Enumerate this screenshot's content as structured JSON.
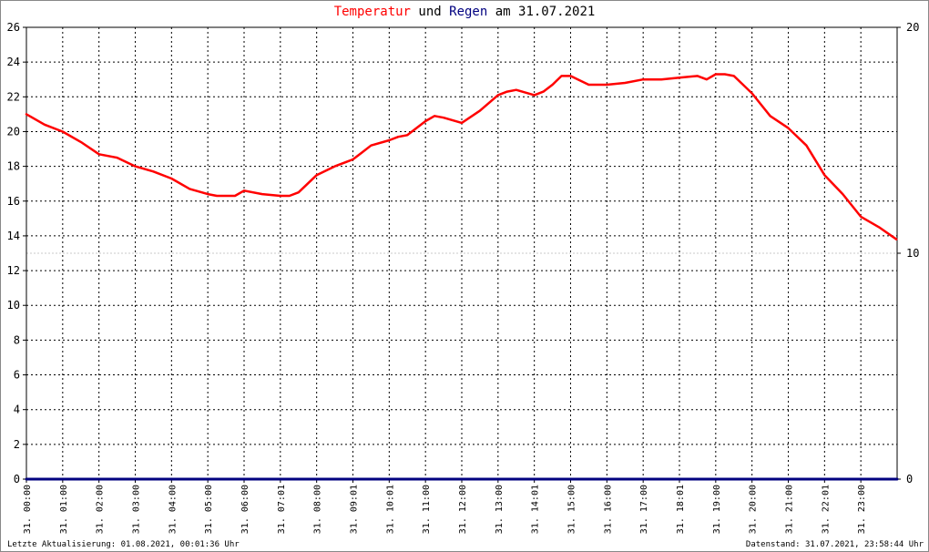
{
  "title": {
    "part1": "Temperatur",
    "part2": " und ",
    "part3": "Regen",
    "part4": " am 31.07.2021",
    "color1": "#ff0000",
    "color3": "#000080"
  },
  "footer": {
    "left": "Letzte Aktualisierung: 01.08.2021, 00:01:36 Uhr",
    "right": "Datenstand: 31.07.2021, 23:58:44 Uhr"
  },
  "chart_data": {
    "type": "line",
    "title": "Temperatur und Regen am 31.07.2021",
    "x_tick_labels": [
      "31. 00:00",
      "31. 01:00",
      "31. 02:00",
      "31. 03:00",
      "31. 04:00",
      "31. 05:00",
      "31. 06:00",
      "31. 07:01",
      "31. 08:00",
      "31. 09:01",
      "31. 10:01",
      "31. 11:00",
      "31. 12:00",
      "31. 13:00",
      "31. 14:01",
      "31. 15:00",
      "31. 16:00",
      "31. 17:00",
      "31. 18:01",
      "31. 19:00",
      "31. 20:00",
      "31. 21:00",
      "31. 22:01",
      "31. 23:00"
    ],
    "y_left_ticks": [
      0,
      2,
      4,
      6,
      8,
      10,
      12,
      14,
      16,
      18,
      20,
      22,
      24,
      26
    ],
    "y_left_range": [
      0,
      26
    ],
    "y_right_ticks": [
      0,
      10,
      20
    ],
    "y_right_range": [
      0,
      20
    ],
    "grid": true,
    "series": [
      {
        "name": "Temperatur",
        "color": "#ff0000",
        "axis": "left",
        "x_hours": [
          0,
          0.5,
          1,
          1.5,
          2,
          2.5,
          3,
          3.5,
          4,
          4.5,
          5,
          5.25,
          5.75,
          6,
          6.5,
          7,
          7.25,
          7.5,
          8,
          8.5,
          9,
          9.25,
          9.5,
          10,
          10.25,
          10.5,
          11,
          11.25,
          11.5,
          12,
          12.5,
          13,
          13.25,
          13.5,
          14,
          14.25,
          14.5,
          14.75,
          15,
          15.5,
          16,
          16.5,
          17,
          17.25,
          17.5,
          18,
          18.5,
          18.75,
          19,
          19.25,
          19.5,
          20,
          20.5,
          21,
          21.5,
          22,
          22.5,
          23,
          23.5,
          23.98
        ],
        "values": [
          21.0,
          20.4,
          20.0,
          19.4,
          18.7,
          18.5,
          18.0,
          17.7,
          17.3,
          16.7,
          16.4,
          16.3,
          16.3,
          16.6,
          16.4,
          16.3,
          16.3,
          16.5,
          17.5,
          18.0,
          18.4,
          18.8,
          19.2,
          19.5,
          19.7,
          19.8,
          20.6,
          20.9,
          20.8,
          20.5,
          21.2,
          22.1,
          22.3,
          22.4,
          22.1,
          22.3,
          22.7,
          23.2,
          23.2,
          22.7,
          22.7,
          22.8,
          23.0,
          23.0,
          23.0,
          23.1,
          23.2,
          23.0,
          23.3,
          23.3,
          23.2,
          22.2,
          20.9,
          20.2,
          19.2,
          17.5,
          16.4,
          15.1,
          14.5,
          13.8
        ]
      },
      {
        "name": "Regen",
        "color": "#000080",
        "axis": "right",
        "x_hours": [
          0,
          24
        ],
        "values": [
          0,
          0
        ]
      }
    ]
  }
}
